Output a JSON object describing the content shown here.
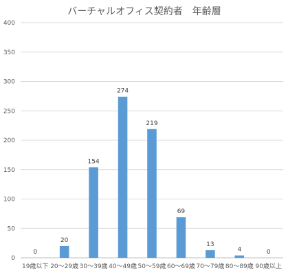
{
  "chart_data": {
    "type": "bar",
    "title": "バーチャルオフィス契約者　年齢層",
    "xlabel": "",
    "ylabel": "",
    "categories": [
      "19歳以下",
      "20～29歳",
      "30～39歳",
      "40～49歳",
      "50～59歳",
      "60～69歳",
      "70～79歳",
      "80～89歳",
      "90歳以上"
    ],
    "values": [
      0,
      20,
      154,
      274,
      219,
      69,
      13,
      4,
      0
    ],
    "data_labels": [
      "0",
      "20",
      "154",
      "274",
      "219",
      "69",
      "13",
      "4",
      "0"
    ],
    "ylim": [
      0,
      400
    ],
    "yticks": [
      0,
      50,
      100,
      150,
      200,
      250,
      300,
      350,
      400
    ],
    "ytick_labels": [
      "0",
      "50",
      "100",
      "150",
      "200",
      "250",
      "300",
      "350",
      "400"
    ],
    "grid": true,
    "legend": "none",
    "bar_color": "#5b9bd5"
  }
}
